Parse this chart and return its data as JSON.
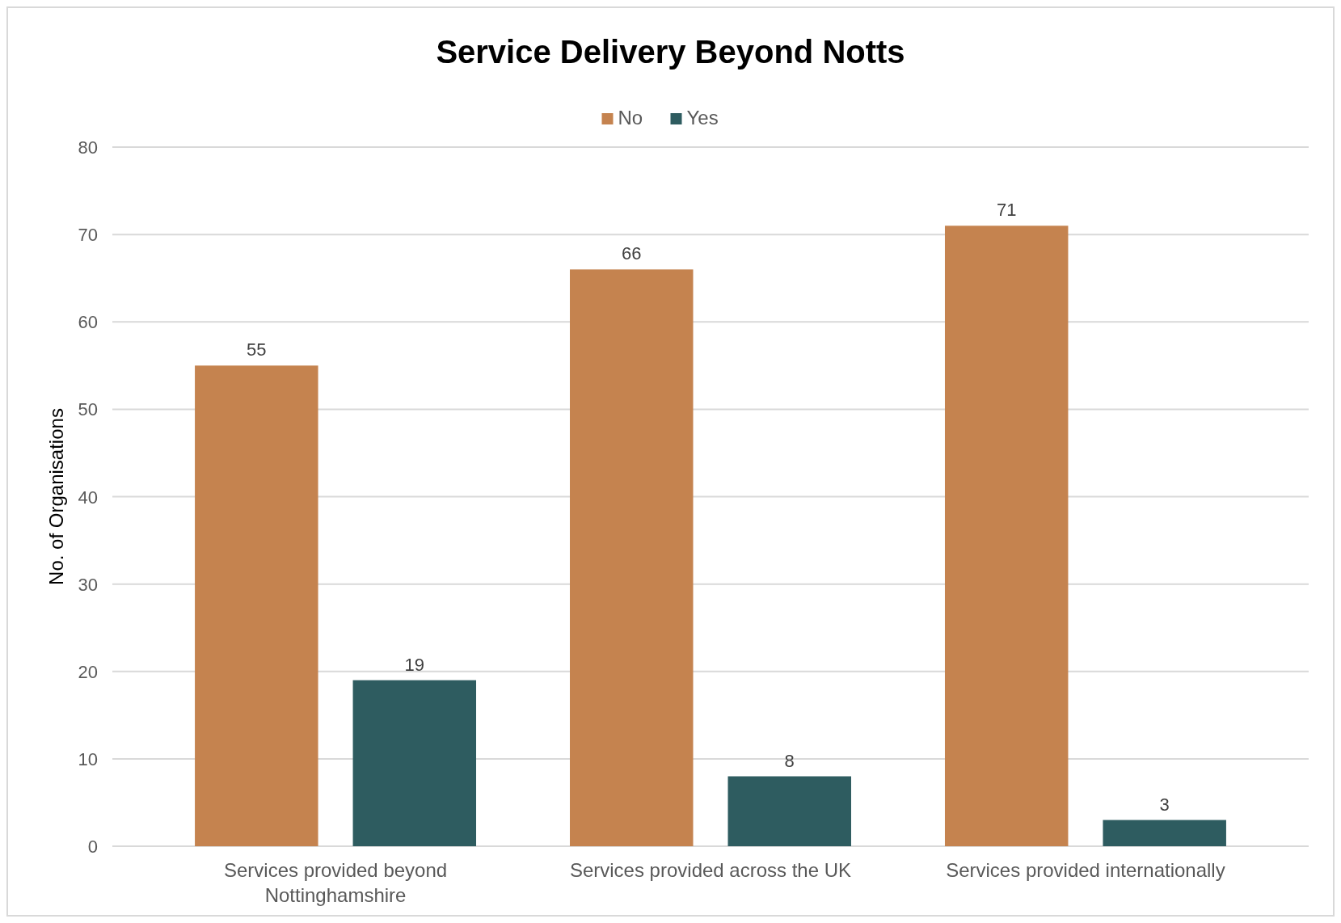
{
  "chart_data": {
    "type": "bar",
    "title": "Service Delivery Beyond Notts",
    "ylabel": "No. of Organisations",
    "categories": [
      "Services provided beyond Nottinghamshire",
      "Services provided across the UK",
      "Services provided internationally"
    ],
    "series": [
      {
        "name": "No",
        "color": "#c5834f",
        "values": [
          55,
          66,
          71
        ]
      },
      {
        "name": "Yes",
        "color": "#2e5c60",
        "values": [
          19,
          8,
          3
        ]
      }
    ],
    "ylim": [
      0,
      80
    ],
    "yticks": [
      0,
      10,
      20,
      30,
      40,
      50,
      60,
      70,
      80
    ],
    "grid": "y",
    "legend": "top",
    "data_labels": true
  }
}
